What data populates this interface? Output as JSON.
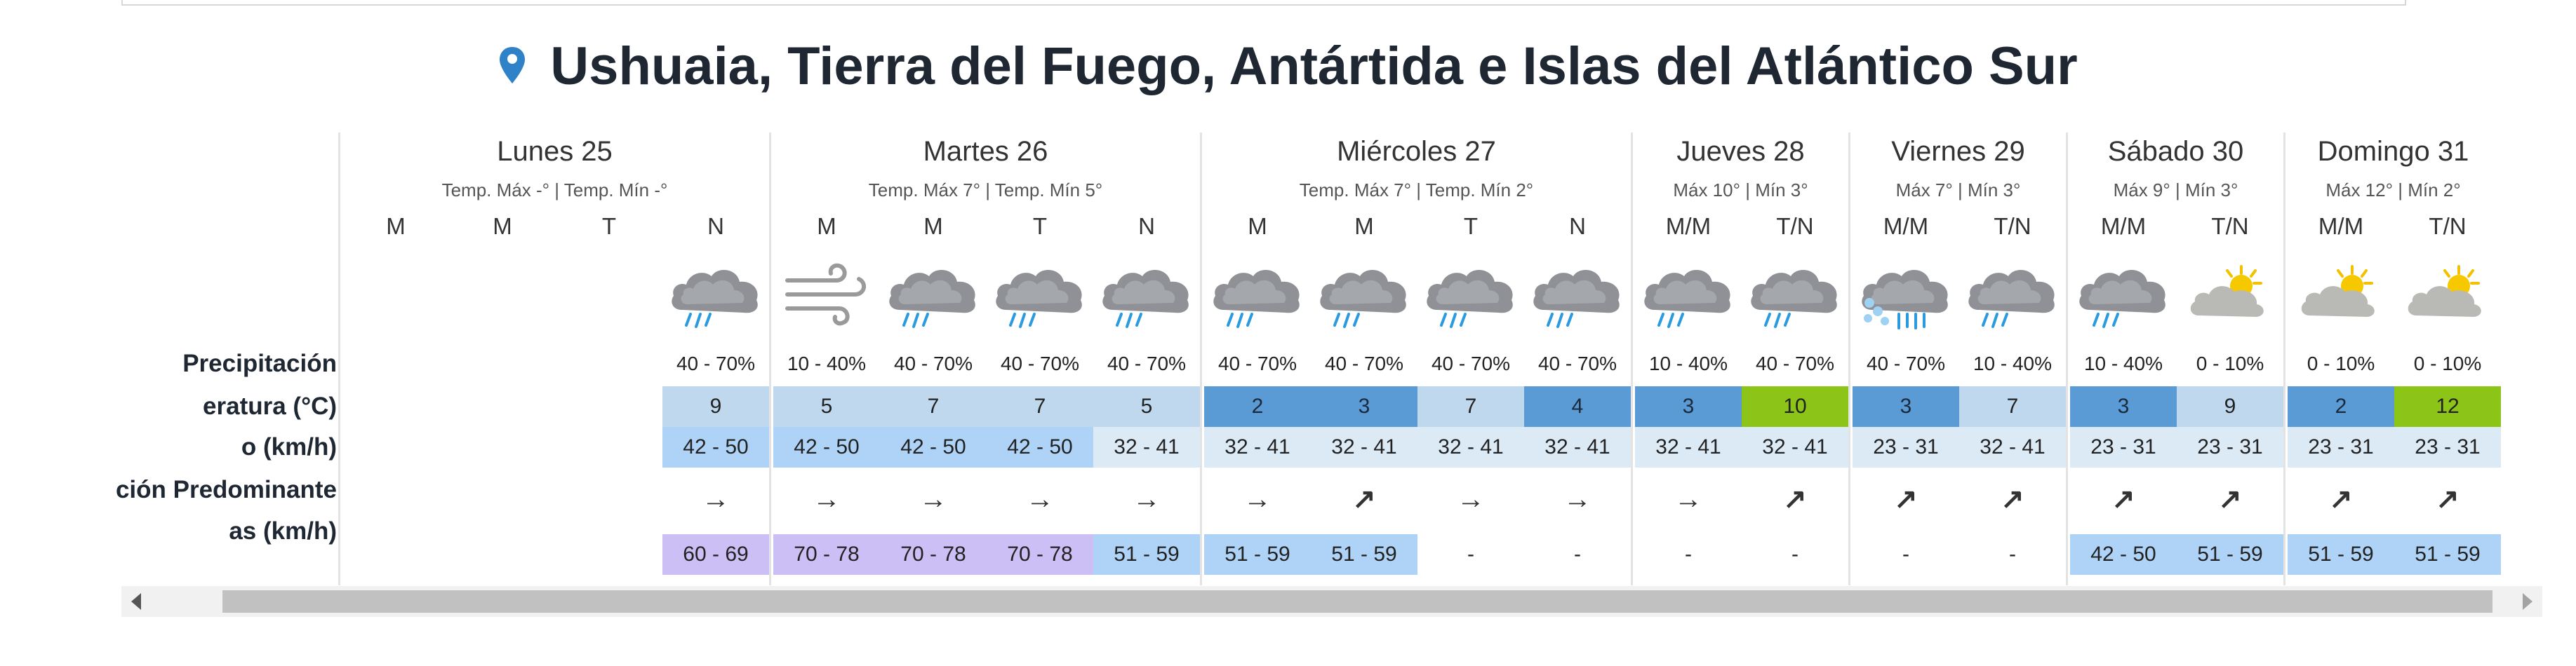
{
  "title": "Ushuaia, Tierra del Fuego, Antártida e Islas del Atlántico Sur",
  "row_labels": {
    "precip": "Precipitación",
    "temp": "eratura (°C)",
    "wind": "o (km/h)",
    "direction": "ción Predominante",
    "gusts": "as (km/h)"
  },
  "days": [
    {
      "name": "Lunes 25",
      "temps": "Temp. Máx -° | Temp. Mín -°",
      "cols": [
        {
          "period": "M",
          "precip": "",
          "temp": "",
          "wind": "",
          "dir": "",
          "gust": "",
          "icon": "none"
        },
        {
          "period": "M",
          "precip": "",
          "temp": "",
          "wind": "",
          "dir": "",
          "gust": "",
          "icon": "none"
        },
        {
          "period": "T",
          "precip": "",
          "temp": "",
          "wind": "",
          "dir": "",
          "gust": "",
          "icon": "none"
        },
        {
          "period": "N",
          "precip": "40 - 70%",
          "temp": "9",
          "wind": "42 - 50",
          "dir": "→",
          "gust": "60 - 69",
          "icon": "rain-cloud-icon",
          "tempColor": "#bfd8ee",
          "windColor": "#aed3f7",
          "gustColor": "#cbbff5"
        }
      ]
    },
    {
      "name": "Martes 26",
      "temps": "Temp. Máx 7° | Temp. Mín 5°",
      "cols": [
        {
          "period": "M",
          "precip": "10 - 40%",
          "temp": "5",
          "wind": "42 - 50",
          "dir": "→",
          "gust": "70 - 78",
          "icon": "wind-icon",
          "tempColor": "#bfd8ee",
          "windColor": "#aed3f7",
          "gustColor": "#cbbff5"
        },
        {
          "period": "M",
          "precip": "40 - 70%",
          "temp": "7",
          "wind": "42 - 50",
          "dir": "→",
          "gust": "70 - 78",
          "icon": "rain-cloud-icon",
          "tempColor": "#bfd8ee",
          "windColor": "#aed3f7",
          "gustColor": "#cbbff5"
        },
        {
          "period": "T",
          "precip": "40 - 70%",
          "temp": "7",
          "wind": "42 - 50",
          "dir": "→",
          "gust": "70 - 78",
          "icon": "rain-cloud-icon",
          "tempColor": "#bfd8ee",
          "windColor": "#aed3f7",
          "gustColor": "#cbbff5"
        },
        {
          "period": "N",
          "precip": "40 - 70%",
          "temp": "5",
          "wind": "32 - 41",
          "dir": "→",
          "gust": "51 - 59",
          "icon": "rain-cloud-icon",
          "tempColor": "#bfd8ee",
          "windColor": "#dceaf6",
          "gustColor": "#aed3f7"
        }
      ]
    },
    {
      "name": "Miércoles 27",
      "temps": "Temp. Máx 7° | Temp. Mín 2°",
      "cols": [
        {
          "period": "M",
          "precip": "40 - 70%",
          "temp": "2",
          "wind": "32 - 41",
          "dir": "→",
          "gust": "51 - 59",
          "icon": "rain-cloud-icon",
          "tempColor": "#5a9ad5",
          "windColor": "#dceaf6",
          "gustColor": "#aed3f7"
        },
        {
          "period": "M",
          "precip": "40 - 70%",
          "temp": "3",
          "wind": "32 - 41",
          "dir": "↗",
          "gust": "51 - 59",
          "icon": "rain-cloud-icon",
          "tempColor": "#5a9ad5",
          "windColor": "#dceaf6",
          "gustColor": "#aed3f7"
        },
        {
          "period": "T",
          "precip": "40 - 70%",
          "temp": "7",
          "wind": "32 - 41",
          "dir": "→",
          "gust": "-",
          "icon": "rain-cloud-icon",
          "tempColor": "#bfd8ee",
          "windColor": "#dceaf6",
          "gustColor": ""
        },
        {
          "period": "N",
          "precip": "40 - 70%",
          "temp": "4",
          "wind": "32 - 41",
          "dir": "→",
          "gust": "-",
          "icon": "rain-cloud-icon",
          "tempColor": "#5a9ad5",
          "windColor": "#dceaf6",
          "gustColor": ""
        }
      ]
    },
    {
      "name": "Jueves 28",
      "temps": "Máx 10° | Mín 3°",
      "cols": [
        {
          "period": "M/M",
          "precip": "10 - 40%",
          "temp": "3",
          "wind": "32 - 41",
          "dir": "→",
          "gust": "-",
          "icon": "rain-cloud-icon",
          "tempColor": "#5a9ad5",
          "windColor": "#dceaf6",
          "gustColor": ""
        },
        {
          "period": "T/N",
          "precip": "40 - 70%",
          "temp": "10",
          "wind": "32 - 41",
          "dir": "↗",
          "gust": "-",
          "icon": "rain-cloud-icon",
          "tempColor": "#8cc418",
          "windColor": "#dceaf6",
          "gustColor": ""
        }
      ]
    },
    {
      "name": "Viernes 29",
      "temps": "Máx 7° | Mín 3°",
      "cols": [
        {
          "period": "M/M",
          "precip": "40 - 70%",
          "temp": "3",
          "wind": "23 - 31",
          "dir": "↗",
          "gust": "-",
          "icon": "snow-rain-icon",
          "tempColor": "#5a9ad5",
          "windColor": "#dceaf6",
          "gustColor": ""
        },
        {
          "period": "T/N",
          "precip": "10 - 40%",
          "temp": "7",
          "wind": "32 - 41",
          "dir": "↗",
          "gust": "-",
          "icon": "rain-cloud-icon",
          "tempColor": "#bfd8ee",
          "windColor": "#dceaf6",
          "gustColor": ""
        }
      ]
    },
    {
      "name": "Sábado 30",
      "temps": "Máx 9° | Mín 3°",
      "cols": [
        {
          "period": "M/M",
          "precip": "10 - 40%",
          "temp": "3",
          "wind": "23 - 31",
          "dir": "↗",
          "gust": "42 - 50",
          "icon": "rain-cloud-icon",
          "tempColor": "#5a9ad5",
          "windColor": "#dceaf6",
          "gustColor": "#aed3f7"
        },
        {
          "period": "T/N",
          "precip": "0 - 10%",
          "temp": "9",
          "wind": "23 - 31",
          "dir": "↗",
          "gust": "51 - 59",
          "icon": "partly-cloudy-icon",
          "tempColor": "#bfd8ee",
          "windColor": "#dceaf6",
          "gustColor": "#aed3f7"
        }
      ]
    },
    {
      "name": "Domingo 31",
      "temps": "Máx 12° | Mín 2°",
      "cols": [
        {
          "period": "M/M",
          "precip": "0 - 10%",
          "temp": "2",
          "wind": "23 - 31",
          "dir": "↗",
          "gust": "51 - 59",
          "icon": "partly-cloudy-icon",
          "tempColor": "#5a9ad5",
          "windColor": "#dceaf6",
          "gustColor": "#aed3f7"
        },
        {
          "period": "T/N",
          "precip": "0 - 10%",
          "temp": "12",
          "wind": "23 - 31",
          "dir": "↗",
          "gust": "51 - 59",
          "icon": "partly-cloudy-icon",
          "tempColor": "#8cc418",
          "windColor": "#dceaf6",
          "gustColor": "#aed3f7"
        }
      ]
    }
  ]
}
